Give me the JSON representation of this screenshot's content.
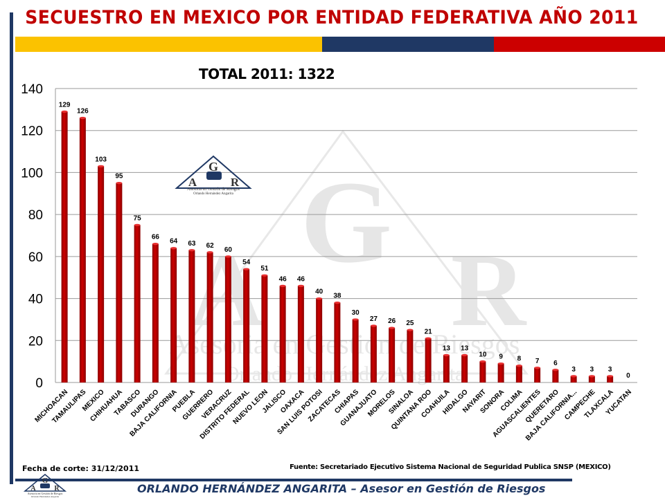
{
  "header": {
    "title": "SECUESTRO  EN MEXICO POR ENTIDAD FEDERATIVA  AÑO 2011",
    "total_label": "TOTAL 2011:  1322"
  },
  "logo": {
    "letters": [
      "G",
      "A",
      "R"
    ],
    "line1": "Asesoria en Gestión de Riesgos",
    "line2": "Orlando Hernández Angarita"
  },
  "watermark": {
    "line1": "Asesoria en Gestión de Riesgos",
    "line2": "Orlando Hernández Angarita"
  },
  "footer": {
    "cutoff": "Fecha de corte: 31/12/2011",
    "source": "Fuente: Secretariado Ejecutivo Sistema Nacional de Seguridad Publica SNSP (MEXICO)",
    "byline": "ORLANDO HERNÁNDEZ ANGARITA – Asesor en Gestión de Riesgos"
  },
  "colors": {
    "bar": "#cc0000",
    "bar_dark": "#8b0000",
    "title": "#c00000",
    "navy": "#1f3864",
    "yellow": "#fbc200"
  },
  "chart_data": {
    "type": "bar",
    "title": "SECUESTRO  EN MEXICO POR ENTIDAD FEDERATIVA  AÑO 2011",
    "categories": [
      "MICHOACAN",
      "TAMAULIPAS",
      "MEXICO",
      "CHIHUAHUA",
      "TABASCO",
      "DURANGO",
      "BAJA CALIFORNIA",
      "PUEBLA",
      "GUERRERO",
      "VERACRUZ",
      "DISTRITO FEDERAL",
      "NUEVO LEON",
      "JALISCO",
      "OAXACA",
      "SAN LUIS POTOSI",
      "ZACATECAS",
      "CHIAPAS",
      "GUANAJUATO",
      "MORELOS",
      "SINALOA",
      "QUINTANA ROO",
      "COAHUILA",
      "HIDALGO",
      "NAYARIT",
      "SONORA",
      "COLIMA",
      "AGUASCALIENTES",
      "QUERETARO",
      "BAJA CALIFORNIA...",
      "CAMPECHE",
      "TLAXCALA",
      "YUCATAN"
    ],
    "values": [
      129,
      126,
      103,
      95,
      75,
      66,
      64,
      63,
      62,
      60,
      54,
      51,
      46,
      46,
      40,
      38,
      30,
      27,
      26,
      25,
      21,
      13,
      13,
      10,
      9,
      8,
      7,
      6,
      3,
      3,
      3,
      0
    ],
    "yticks": [
      0,
      20,
      40,
      60,
      80,
      100,
      120,
      140
    ],
    "ylim": [
      0,
      140
    ],
    "grid": true,
    "legend": "none"
  }
}
